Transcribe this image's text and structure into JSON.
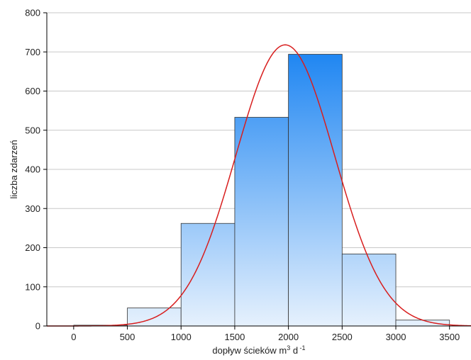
{
  "chart_data": {
    "type": "bar",
    "title": "",
    "xlabel": "dopływ ścieków m",
    "xlabel_sup1": "3",
    "xlabel_mid": " d",
    "xlabel_sup2": " -1",
    "ylabel": "liczba zdarzeń",
    "x_ticks": [
      0,
      500,
      1000,
      1500,
      2000,
      2500,
      3000,
      3500
    ],
    "y_ticks": [
      0,
      100,
      200,
      300,
      400,
      500,
      600,
      700,
      800
    ],
    "xlim": [
      -250,
      3700
    ],
    "ylim": [
      0,
      800
    ],
    "grid": true,
    "bins": [
      {
        "from": 0,
        "to": 500,
        "value": 2
      },
      {
        "from": 500,
        "to": 1000,
        "value": 46
      },
      {
        "from": 1000,
        "to": 1500,
        "value": 262
      },
      {
        "from": 1500,
        "to": 2000,
        "value": 533
      },
      {
        "from": 2000,
        "to": 2500,
        "value": 694
      },
      {
        "from": 2500,
        "to": 3000,
        "value": 184
      },
      {
        "from": 3000,
        "to": 3500,
        "value": 15
      }
    ],
    "fit_curve": {
      "type": "normal",
      "mean": 1970,
      "sd": 460,
      "peak": 718,
      "color": "#d81e1e"
    },
    "colors": {
      "bar_top": "#1f86f2",
      "bar_bottom": "#e6f1fd",
      "bar_edge": "#333333",
      "grid": "#c8c8c8"
    }
  }
}
